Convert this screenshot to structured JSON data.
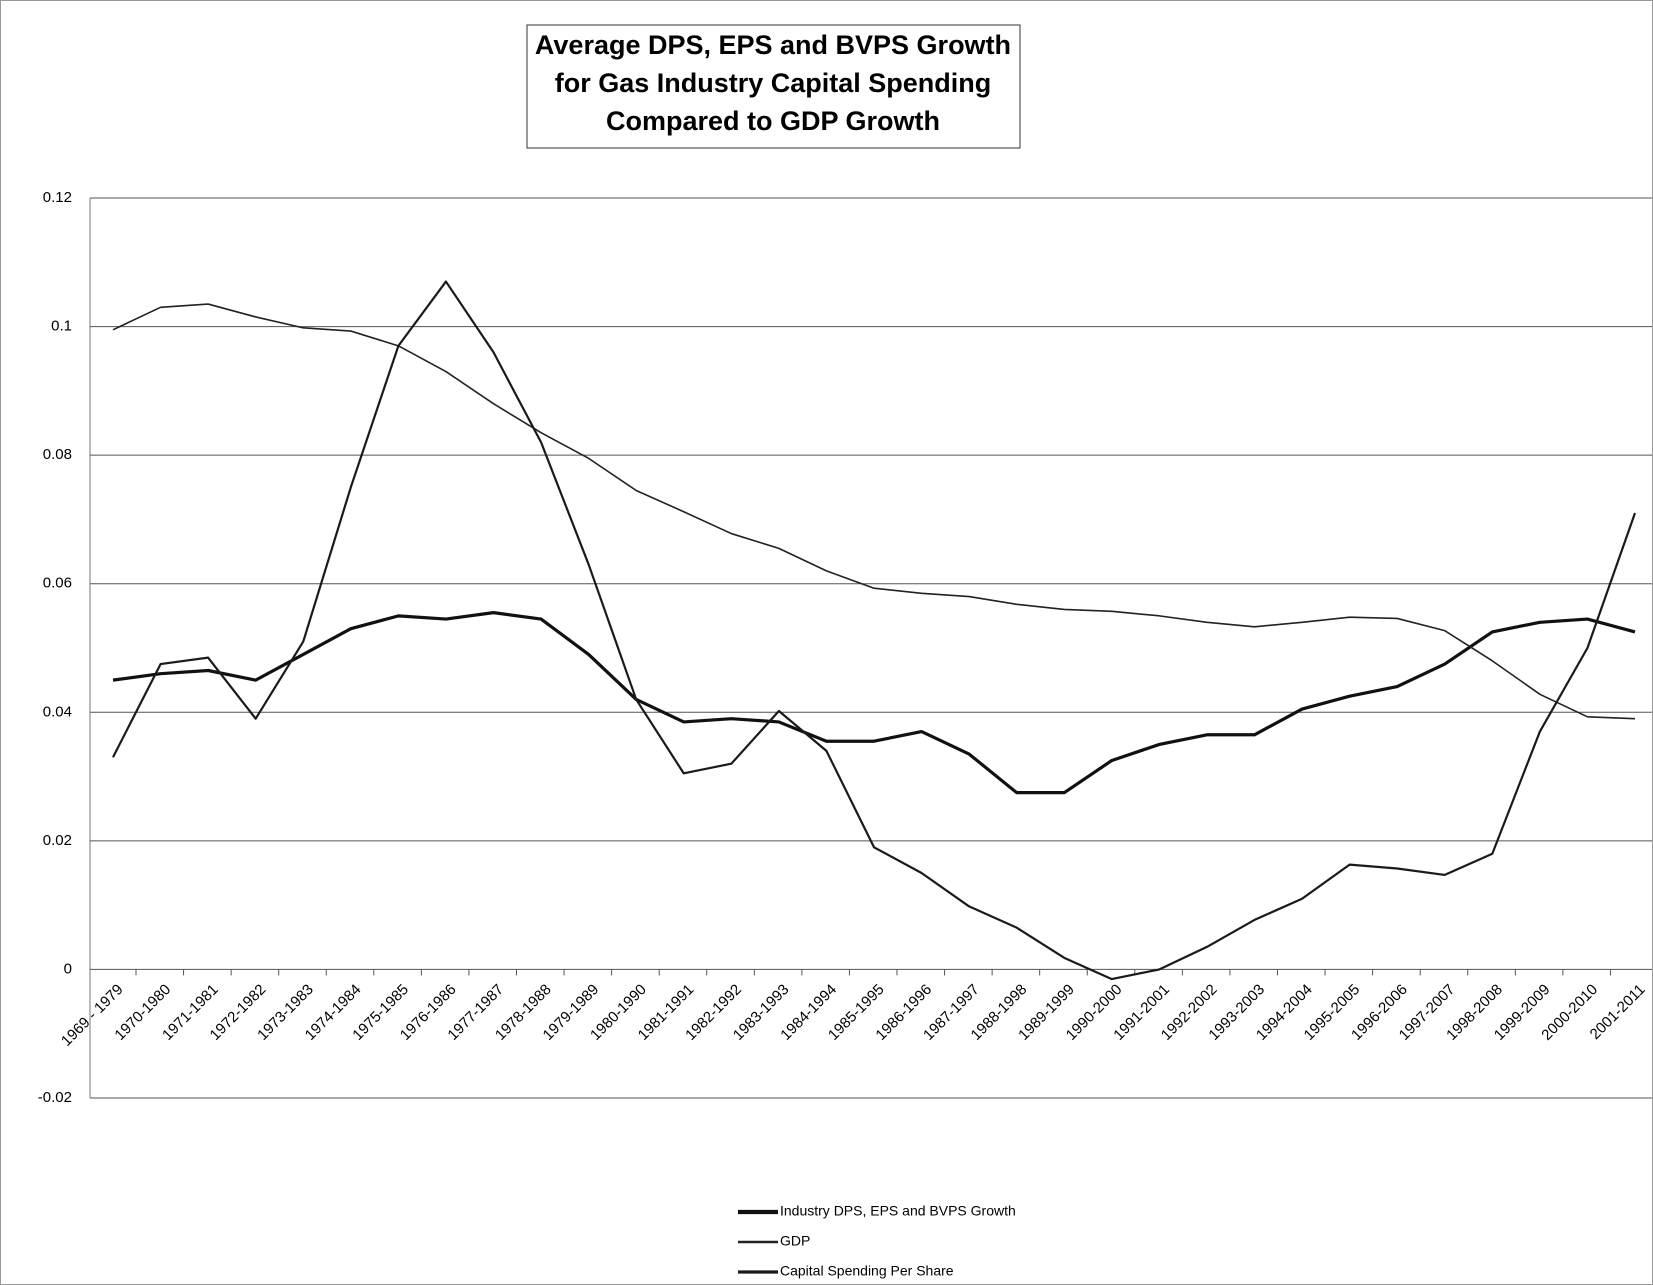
{
  "chart_data": {
    "type": "line",
    "title": [
      "Average DPS, EPS and BVPS Growth",
      "for Gas Industry Capital Spending",
      "Compared to GDP Growth"
    ],
    "categories": [
      "1969 - 1979",
      "1970-1980",
      "1971-1981",
      "1972-1982",
      "1973-1983",
      "1974-1984",
      "1975-1985",
      "1976-1986",
      "1977-1987",
      "1978-1988",
      "1979-1989",
      "1980-1990",
      "1981-1991",
      "1982-1992",
      "1983-1993",
      "1984-1994",
      "1985-1995",
      "1986-1996",
      "1987-1997",
      "1988-1998",
      "1989-1999",
      "1990-2000",
      "1991-2001",
      "1992-2002",
      "1993-2003",
      "1994-2004",
      "1995-2005",
      "1996-2006",
      "1997-2007",
      "1998-2008",
      "1999-2009",
      "2000-2010",
      "2001-2011"
    ],
    "series": [
      {
        "name": "Industry DPS, EPS and BVPS Growth",
        "color": "#111111",
        "width": 3.2,
        "values": [
          0.045,
          0.046,
          0.0465,
          0.045,
          0.049,
          0.053,
          0.055,
          0.0545,
          0.0555,
          0.0545,
          0.049,
          0.042,
          0.0385,
          0.039,
          0.0385,
          0.0355,
          0.0355,
          0.037,
          0.0335,
          0.0275,
          0.0275,
          0.0325,
          0.035,
          0.0365,
          0.0365,
          0.0405,
          0.0425,
          0.044,
          0.0475,
          0.0525,
          0.054,
          0.0545,
          0.0525
        ]
      },
      {
        "name": "GDP",
        "color": "#222222",
        "width": 1.6,
        "values": [
          0.0995,
          0.103,
          0.1035,
          0.1015,
          0.0998,
          0.0993,
          0.097,
          0.093,
          0.088,
          0.0835,
          0.0795,
          0.0745,
          0.0712,
          0.0678,
          0.0655,
          0.062,
          0.0593,
          0.0585,
          0.058,
          0.0568,
          0.056,
          0.0557,
          0.055,
          0.054,
          0.0533,
          0.054,
          0.0548,
          0.0546,
          0.0527,
          0.048,
          0.0428,
          0.0393,
          0.039
        ]
      },
      {
        "name": "Capital Spending Per Share",
        "color": "#1a1a1a",
        "width": 2.2,
        "values": [
          0.033,
          0.0475,
          0.0485,
          0.039,
          0.051,
          0.075,
          0.097,
          0.107,
          0.096,
          0.082,
          0.063,
          0.042,
          0.0305,
          0.032,
          0.0402,
          0.034,
          0.019,
          0.015,
          0.0098,
          0.0065,
          0.0018,
          -0.0015,
          0,
          0.0035,
          0.0077,
          0.011,
          0.0163,
          0.0157,
          0.0147,
          0.018,
          0.037,
          0.05,
          0.071
        ]
      }
    ],
    "ylim": [
      -0.02,
      0.12
    ],
    "yticks": [
      -0.02,
      0,
      0.02,
      0.04,
      0.06,
      0.08,
      0.1,
      0.12
    ],
    "grid": true
  }
}
